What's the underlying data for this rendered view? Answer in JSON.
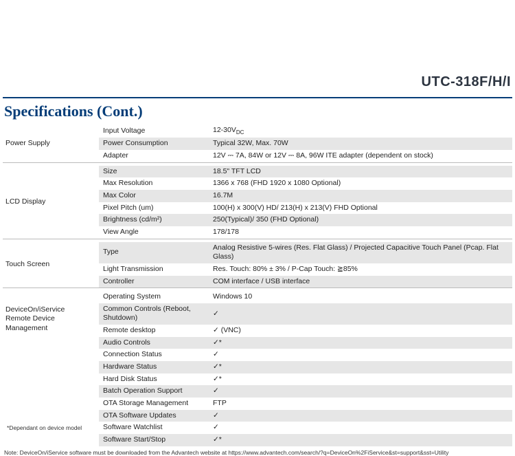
{
  "model_title": "UTC-318F/H/I",
  "section_title": "Specifications (Cont.)",
  "colors": {
    "brand_blue": "#063d78",
    "row_shade": "#e6e6e6",
    "text": "#222222",
    "rule": "#bbbbbb"
  },
  "groups": [
    {
      "category": "Power Supply",
      "rows": [
        {
          "attr": "Input Voltage",
          "val": "12-30V",
          "val_sub": "DC",
          "shade": false
        },
        {
          "attr": "Power Consumption",
          "val": "Typical 32W, Max. 70W",
          "shade": true
        },
        {
          "attr": "Adapter",
          "val": "12V ⎓ 7A, 84W or 12V ⎓ 8A, 96W ITE adapter (dependent on stock)",
          "shade": false
        }
      ]
    },
    {
      "category": "LCD Display",
      "rows": [
        {
          "attr": "Size",
          "val": "18.5\" TFT LCD",
          "shade": true
        },
        {
          "attr": "Max Resolution",
          "val": "1366 x 768 (FHD 1920 x 1080 Optional)",
          "shade": false
        },
        {
          "attr": "Max Color",
          "val": "16.7M",
          "shade": true
        },
        {
          "attr": "Pixel Pitch (um)",
          "val": "100(H) x 300(V) HD/ 213(H) x 213(V) FHD Optional",
          "shade": false
        },
        {
          "attr": "Brightness (cd/m²)",
          "val": "250(Typical)/ 350 (FHD Optional)",
          "shade": true
        },
        {
          "attr": "View Angle",
          "val": "178/178",
          "shade": false
        }
      ]
    },
    {
      "category": "Touch Screen",
      "rows": [
        {
          "attr": "Type",
          "val": "Analog Resistive 5-wires (Res. Flat Glass) / Projected Capacitive Touch Panel (Pcap. Flat Glass)",
          "shade": true
        },
        {
          "attr": "Light Transmission",
          "val": "Res. Touch: 80% ± 3% / P-Cap Touch: ≧85%",
          "shade": false
        },
        {
          "attr": "Controller",
          "val": "COM interface / USB interface",
          "shade": true
        }
      ]
    },
    {
      "category": "DeviceOn/iService\nRemote Device Management",
      "rows": [
        {
          "attr": "Operating System",
          "val": "Windows 10",
          "shade": false
        },
        {
          "attr": "Common Controls (Reboot, Shutdown)",
          "val": "✓",
          "shade": true
        },
        {
          "attr": "Remote desktop",
          "val": "✓ (VNC)",
          "shade": false
        },
        {
          "attr": "Audio Controls",
          "val": "✓*",
          "shade": true
        },
        {
          "attr": "Connection Status",
          "val": "✓",
          "shade": false
        },
        {
          "attr": "Hardware Status",
          "val": "✓*",
          "shade": true
        },
        {
          "attr": "Hard Disk Status",
          "val": "✓*",
          "shade": false
        },
        {
          "attr": "Batch Operation Support",
          "val": "✓",
          "shade": true
        },
        {
          "attr": "OTA Storage Management",
          "val": "FTP",
          "shade": false
        },
        {
          "attr": "OTA Software Updates",
          "val": "✓",
          "shade": true
        },
        {
          "attr": "Software Watchlist",
          "val": "✓",
          "shade": false
        },
        {
          "attr": "Software Start/Stop",
          "val": "✓*",
          "shade": true
        }
      ],
      "footnote": "*Dependant on device model"
    }
  ],
  "note": "Note: DeviceOn/iService software must be downloaded from the Advantech website at https://www.advantech.com/search/?q=DeviceOn%2FiService&st=support&sst=Utility"
}
